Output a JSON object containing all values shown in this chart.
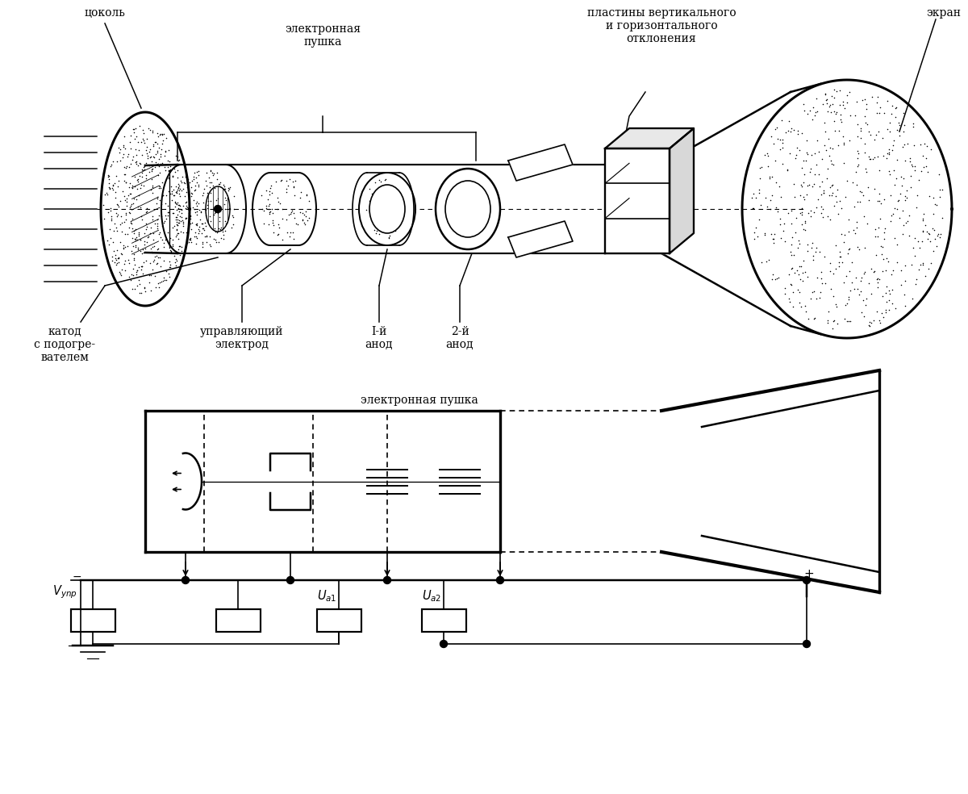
{
  "bg_color": "#ffffff",
  "lc": "#000000",
  "fig_width": 12.0,
  "fig_height": 9.84,
  "labels": {
    "tsokol": "цоколь",
    "electron_gun_top": "электронная\nпушка",
    "plates": "пластины вертикального\nи горизонтального\nотклонения",
    "screen": "экран",
    "cathode": "катод\nс подогре-\nвателем",
    "control_el": "управляющий\nэлектрод",
    "anode1": "I-й\nанод",
    "anode2": "2-й\nанод",
    "electron_gun_bot": "электронная пушка",
    "Vupr": "$V_{ynp}$",
    "Va1": "$U_{a1}$",
    "Va2": "$U_{a2}$"
  }
}
